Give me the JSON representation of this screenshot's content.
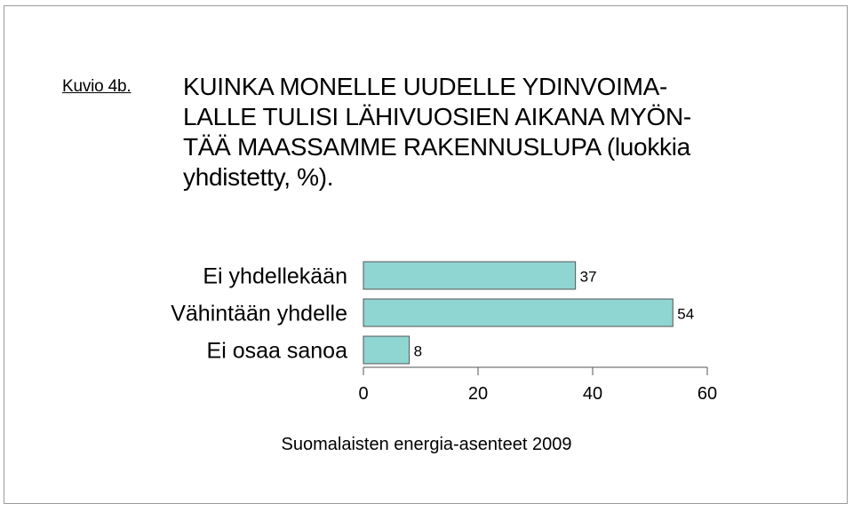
{
  "figure": {
    "label": "Kuvio 4b.",
    "title_lines": [
      "KUINKA MONELLE UUDELLE YDINVOIMA-",
      "LALLE TULISI LÄHIVUOSIEN AIKANA MYÖN-",
      "TÄÄ MAASSAMME RAKENNUSLUPA (luokkia",
      "yhdistetty, %)."
    ],
    "source": "Suomalaisten energia-asenteet 2009"
  },
  "chart_data": {
    "type": "bar",
    "orientation": "horizontal",
    "title": "KUINKA MONELLE UUDELLE YDINVOIMALALLE TULISI LÄHIVUOSIEN AIKANA MYÖNTÄÄ MAASSAMME RAKENNUSLUPA (luokkia yhdistetty, %).",
    "categories": [
      "Ei yhdellekään",
      "Vähintään yhdelle",
      "Ei osaa sanoa"
    ],
    "values": [
      37,
      54,
      8
    ],
    "value_labels": [
      "37",
      "54",
      "8"
    ],
    "xlim": [
      0,
      60
    ],
    "xticks": [
      0,
      20,
      40,
      60
    ],
    "xtick_labels": [
      "0",
      "20",
      "40",
      "60"
    ],
    "xlabel": "",
    "ylabel": "",
    "grid": false,
    "legend": "none",
    "bar_color": "#8fd5d2",
    "bar_edge_color": "#555555"
  }
}
